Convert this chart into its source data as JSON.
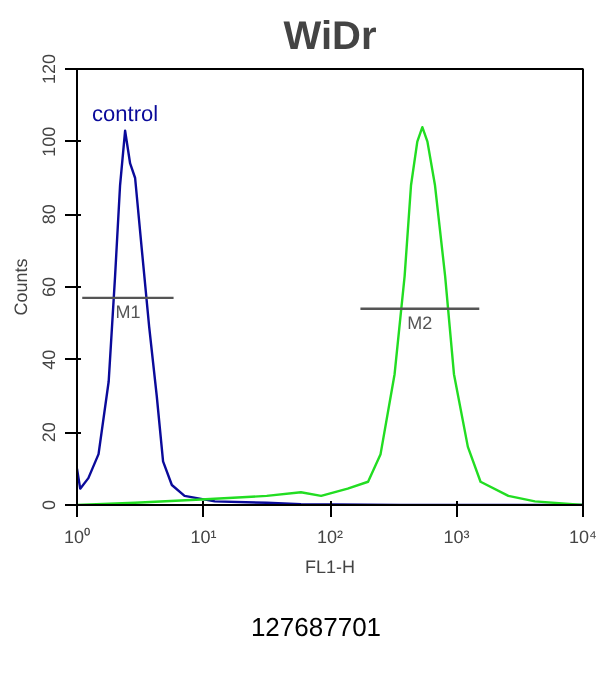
{
  "chart_data": {
    "type": "line",
    "title": "WiDr",
    "xlabel": "FL1-H",
    "ylabel": "Counts",
    "log": "x",
    "xlim": [
      1,
      10000
    ],
    "xticks": [
      {
        "value": 1,
        "label": "10⁰"
      },
      {
        "value": 10,
        "label": "10¹"
      },
      {
        "value": 100,
        "label": "10²"
      },
      {
        "value": 1000,
        "label": "10³"
      },
      {
        "value": 10000,
        "label": "10⁴"
      }
    ],
    "ylim": [
      0,
      120
    ],
    "yticks": [
      0,
      20,
      40,
      60,
      80,
      100,
      120
    ],
    "grid": false,
    "legend": false,
    "marker": "none",
    "line_style": "solid",
    "series": [
      {
        "name": "control",
        "color": "#0a0a9a",
        "x": [
          1,
          1.06,
          1.23,
          1.48,
          1.78,
          2.0,
          2.19,
          2.4,
          2.63,
          2.88,
          3.24,
          3.72,
          4.27,
          4.79,
          5.62,
          7.08,
          12.3,
          31.6,
          58.9,
          363,
          10000
        ],
        "values": [
          10,
          4.5,
          7.4,
          14,
          34,
          63,
          88,
          103,
          94,
          90,
          71,
          49,
          30,
          12,
          5.5,
          2.5,
          1,
          0.6,
          0.2,
          0,
          0
        ]
      },
      {
        "color": "#22dd22",
        "x": [
          1,
          2.88,
          9.55,
          31.6,
          58.9,
          85.1,
          138,
          200,
          251,
          324,
          389,
          437,
          490,
          537,
          589,
          676,
          813,
          955,
          1230,
          1549,
          2570,
          4169,
          10000
        ],
        "values": [
          0,
          0.6,
          1.5,
          2.5,
          3.5,
          2.5,
          4.5,
          6.4,
          14,
          36,
          63,
          88,
          100,
          104,
          100,
          88,
          63,
          36,
          16,
          6.4,
          2.5,
          1,
          0
        ]
      },
      {
        "name": "M1",
        "color": "#555555",
        "x": [
          1.1,
          5.8
        ],
        "values": [
          57,
          57
        ]
      },
      {
        "name": "M2",
        "color": "#555555",
        "x": [
          174,
          1514
        ],
        "values": [
          54,
          54
        ]
      }
    ],
    "annotations": [
      "127687701"
    ]
  }
}
